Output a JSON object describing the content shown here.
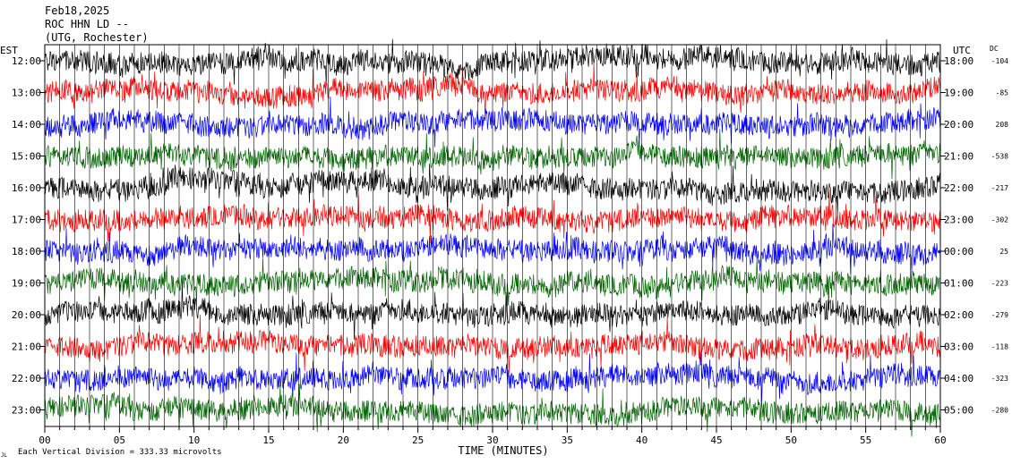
{
  "header": {
    "date": "Feb18,2025",
    "station": "ROC HHN LD --",
    "location": "(UTG, Rochester)"
  },
  "labels": {
    "left_tz": "EST",
    "right_tz": "UTC",
    "dc_header": "DC",
    "xlabel": "TIME (MINUTES)",
    "footer_note": "Each Vertical Division =  333.33 microvolts",
    "footer_mark": "JL"
  },
  "chart_data": {
    "type": "line",
    "title": "",
    "xlabel": "TIME (MINUTES)",
    "ylabel": "",
    "xlim": [
      0,
      60
    ],
    "x_ticks": [
      "00",
      "05",
      "10",
      "15",
      "20",
      "25",
      "30",
      "35",
      "40",
      "45",
      "50",
      "55",
      "60"
    ],
    "traces": [
      {
        "est": "12:00",
        "utc": "18:00",
        "dc": "-104",
        "color": "#000000"
      },
      {
        "est": "13:00",
        "utc": "19:00",
        "dc": "-85",
        "color": "#ff0000"
      },
      {
        "est": "14:00",
        "utc": "20:00",
        "dc": "208",
        "color": "#0000ff"
      },
      {
        "est": "15:00",
        "utc": "21:00",
        "dc": "-538",
        "color": "#006400"
      },
      {
        "est": "16:00",
        "utc": "22:00",
        "dc": "-217",
        "color": "#000000"
      },
      {
        "est": "17:00",
        "utc": "23:00",
        "dc": "-302",
        "color": "#ff0000"
      },
      {
        "est": "18:00",
        "utc": "00:00",
        "dc": "25",
        "color": "#0000ff"
      },
      {
        "est": "19:00",
        "utc": "01:00",
        "dc": "-223",
        "color": "#006400"
      },
      {
        "est": "20:00",
        "utc": "02:00",
        "dc": "-279",
        "color": "#000000"
      },
      {
        "est": "21:00",
        "utc": "03:00",
        "dc": "-118",
        "color": "#ff0000"
      },
      {
        "est": "22:00",
        "utc": "04:00",
        "dc": "-323",
        "color": "#0000ff"
      },
      {
        "est": "23:00",
        "utc": "05:00",
        "dc": "-280",
        "color": "#006400"
      }
    ]
  }
}
